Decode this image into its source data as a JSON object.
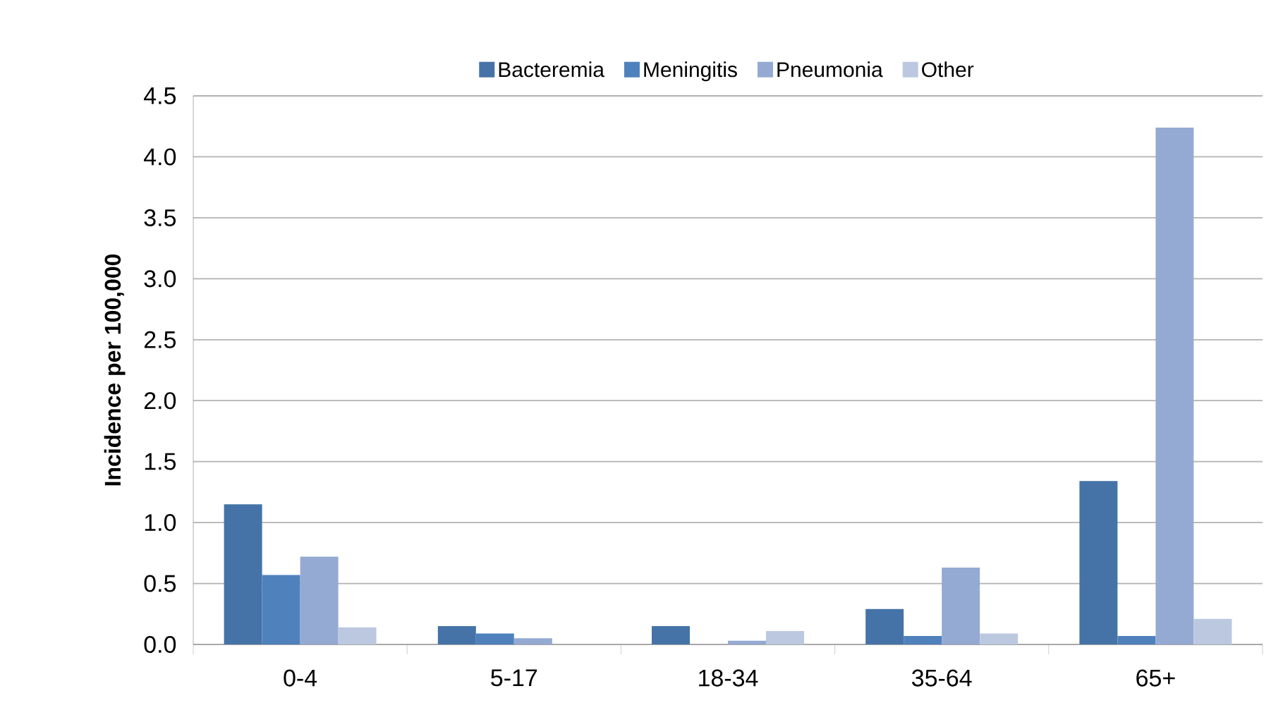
{
  "chart_data": {
    "type": "bar",
    "ylabel": "Incidence per 100,000",
    "categories": [
      "0-4",
      "5-17",
      "18-34",
      "35-64",
      "65+"
    ],
    "series": [
      {
        "name": "Bacteremia",
        "color": "#4573a7",
        "values": [
          1.15,
          0.15,
          0.15,
          0.29,
          1.34
        ]
      },
      {
        "name": "Meningitis",
        "color": "#4f81bd",
        "values": [
          0.57,
          0.09,
          0,
          0.07,
          0.07
        ]
      },
      {
        "name": "Pneumonia",
        "color": "#95aad2",
        "values": [
          0.72,
          0.05,
          0.03,
          0.63,
          4.24
        ]
      },
      {
        "name": "Other",
        "color": "#bbc8e0",
        "values": [
          0.14,
          0,
          0.11,
          0.09,
          0.21
        ]
      }
    ],
    "ylim": [
      0,
      4.5
    ],
    "yticks": [
      {
        "value": 0,
        "label": "0.0"
      },
      {
        "value": 0.5,
        "label": "0.5"
      },
      {
        "value": 1,
        "label": "1.0"
      },
      {
        "value": 1.5,
        "label": "1.5"
      },
      {
        "value": 2,
        "label": "2.0"
      },
      {
        "value": 2.5,
        "label": "2.5"
      },
      {
        "value": 3,
        "label": "3.0"
      },
      {
        "value": 3.5,
        "label": "3.5"
      },
      {
        "value": 4,
        "label": "4.0"
      },
      {
        "value": 4.5,
        "label": "4.5"
      }
    ],
    "grid": "y",
    "legend": "top"
  }
}
